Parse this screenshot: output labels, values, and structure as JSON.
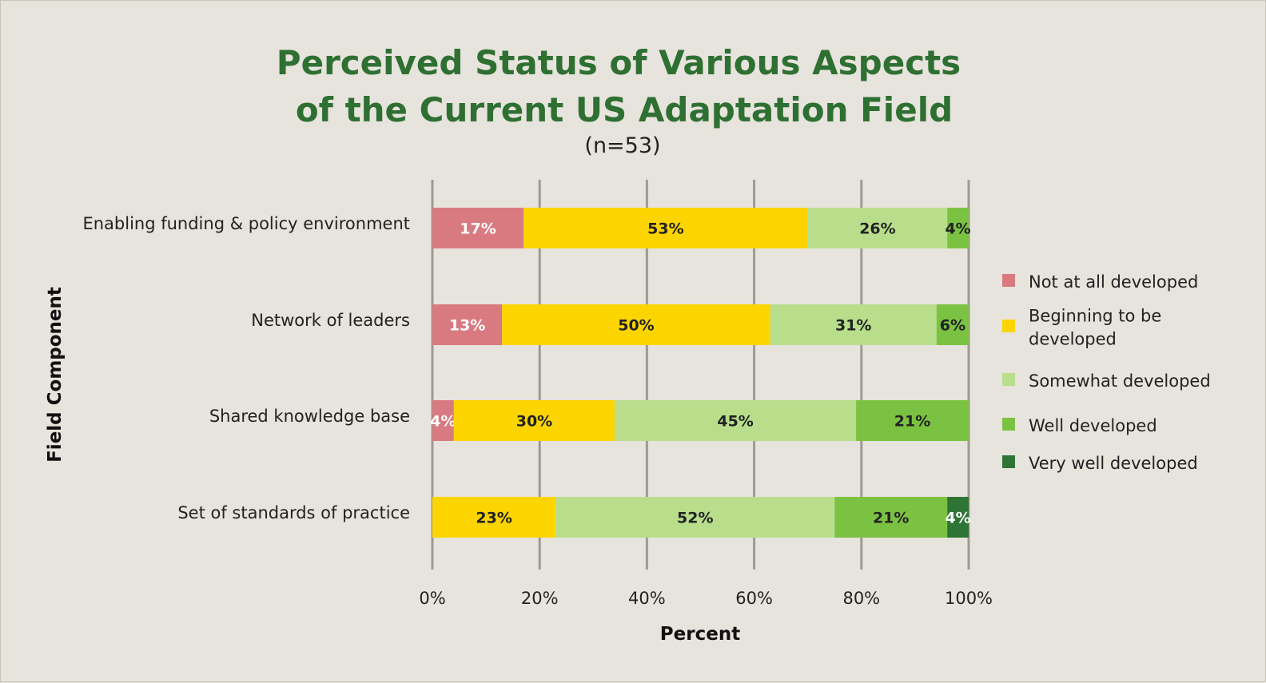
{
  "chart_data": {
    "type": "bar",
    "orientation": "horizontal",
    "stacked": true,
    "title_lines": [
      "Perceived Status of Various Aspects",
      "of the Current US Adaptation Field"
    ],
    "subtitle": "(n=53)",
    "xlabel": "Percent",
    "ylabel": "Field Component",
    "xlim": [
      0,
      100
    ],
    "xticks": [
      0,
      20,
      40,
      60,
      80,
      100
    ],
    "xtick_labels": [
      "0%",
      "20%",
      "40%",
      "60%",
      "80%",
      "100%"
    ],
    "grid": "vertical",
    "legend_position": "right",
    "categories": [
      "Enabling funding & policy environment",
      "Network of leaders",
      "Shared knowledge base",
      "Set of standards of practice"
    ],
    "series": [
      {
        "name": "Not at all developed",
        "color": "#d97a80",
        "label_color": "#ffffff",
        "values": [
          17,
          13,
          4,
          0
        ]
      },
      {
        "name": "Beginning to be developed",
        "legend_lines": [
          "Beginning to be",
          "developed"
        ],
        "color": "#fcd500",
        "label_color": "#222222",
        "values": [
          53,
          50,
          30,
          23
        ]
      },
      {
        "name": "Somewhat developed",
        "color": "#b8de8c",
        "label_color": "#222222",
        "values": [
          26,
          31,
          45,
          52
        ]
      },
      {
        "name": "Well developed",
        "color": "#7cc242",
        "label_color": "#222222",
        "values": [
          4,
          6,
          21,
          21
        ]
      },
      {
        "name": "Very well developed",
        "color": "#2e7434",
        "label_color": "#ffffff",
        "values": [
          0,
          0,
          0,
          4
        ]
      }
    ]
  }
}
